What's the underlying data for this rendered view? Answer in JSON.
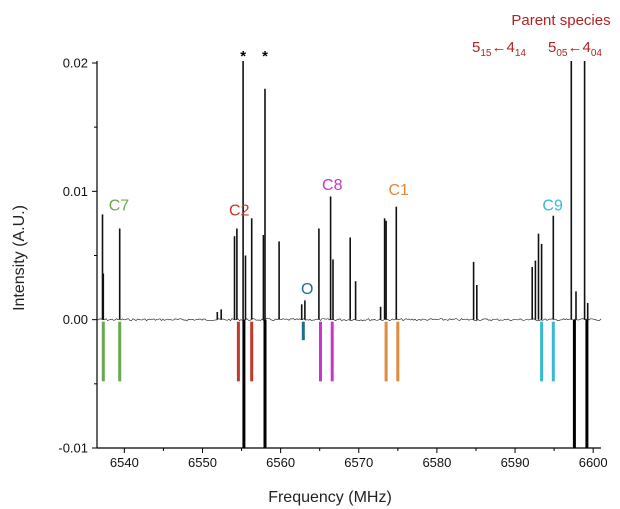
{
  "chart_data": {
    "type": "line",
    "title": "",
    "xlabel": "Frequency (MHz)",
    "ylabel": "Intensity (A.U.)",
    "xlim": [
      6536.5,
      6601
    ],
    "ylim": [
      -0.01,
      0.02
    ],
    "x_ticks": [
      6540,
      6550,
      6560,
      6570,
      6580,
      6590,
      6600
    ],
    "x_tick_labels": [
      "6540",
      "6550",
      "6560",
      "6570",
      "6580",
      "6590",
      "6600"
    ],
    "y_ticks": [
      -0.01,
      0,
      0.01,
      0.02
    ],
    "y_tick_labels": [
      "-0.01",
      "0.00",
      "0.01",
      "0.02"
    ],
    "grid": false,
    "experimental_lines": [
      {
        "x": 6537.2,
        "y": 0.0082
      },
      {
        "x": 6537.3,
        "y": 0.0036
      },
      {
        "x": 6539.4,
        "y": 0.0071
      },
      {
        "x": 6551.9,
        "y": 0.0006
      },
      {
        "x": 6552.4,
        "y": 0.0008
      },
      {
        "x": 6554.1,
        "y": 0.0065
      },
      {
        "x": 6554.4,
        "y": 0.0071
      },
      {
        "x": 6555.2,
        "y": 0.0203
      },
      {
        "x": 6555.5,
        "y": 0.005
      },
      {
        "x": 6556.3,
        "y": 0.0079
      },
      {
        "x": 6557.8,
        "y": 0.0066
      },
      {
        "x": 6558.0,
        "y": 0.018
      },
      {
        "x": 6559.8,
        "y": 0.0061
      },
      {
        "x": 6562.7,
        "y": 0.0012
      },
      {
        "x": 6563.1,
        "y": 0.0015
      },
      {
        "x": 6564.9,
        "y": 0.0071
      },
      {
        "x": 6566.4,
        "y": 0.0096
      },
      {
        "x": 6566.7,
        "y": 0.0047
      },
      {
        "x": 6568.9,
        "y": 0.0064
      },
      {
        "x": 6569.6,
        "y": 0.003
      },
      {
        "x": 6572.8,
        "y": 0.001
      },
      {
        "x": 6573.3,
        "y": 0.0079
      },
      {
        "x": 6573.5,
        "y": 0.0077
      },
      {
        "x": 6574.8,
        "y": 0.0088
      },
      {
        "x": 6584.7,
        "y": 0.0045
      },
      {
        "x": 6585.1,
        "y": 0.0027
      },
      {
        "x": 6592.2,
        "y": 0.0041
      },
      {
        "x": 6592.6,
        "y": 0.0046
      },
      {
        "x": 6593.0,
        "y": 0.0067
      },
      {
        "x": 6593.4,
        "y": 0.0059
      },
      {
        "x": 6594.9,
        "y": 0.0081
      },
      {
        "x": 6597.2,
        "y": 0.0202
      },
      {
        "x": 6597.8,
        "y": 0.0022
      },
      {
        "x": 6598.9,
        "y": 0.0202
      },
      {
        "x": 6599.3,
        "y": 0.0013
      }
    ],
    "negative_lines": [
      {
        "x": 6555.3,
        "y": -0.0102
      },
      {
        "x": 6558.0,
        "y": -0.0102
      },
      {
        "x": 6597.6,
        "y": -0.0102
      },
      {
        "x": 6599.2,
        "y": -0.0102
      }
    ],
    "predicted_lines": [
      {
        "label": "C7",
        "color": "#6aa84f",
        "x": [
          6537.3,
          6539.4
        ],
        "y": -0.0048
      },
      {
        "label": "C2",
        "color": "#c0392b",
        "x": [
          6554.6,
          6556.3
        ],
        "y": -0.0048
      },
      {
        "label": "O",
        "color": "#1f6e8c",
        "x": [
          6562.9
        ],
        "y": -0.0016
      },
      {
        "label": "C8",
        "color": "#cc33cc",
        "x": [
          6565.1,
          6566.6
        ],
        "y": -0.0048
      },
      {
        "label": "C1",
        "color": "#e08a3c",
        "x": [
          6573.5,
          6575.0
        ],
        "y": -0.0048
      },
      {
        "label": "C9",
        "color": "#38b8d8",
        "x": [
          6593.4,
          6594.9
        ],
        "y": -0.0048
      }
    ],
    "assignment_labels": [
      {
        "text": "C7",
        "color": "#6aa84f",
        "x": 6538.0,
        "y": 0.0085
      },
      {
        "text": "C2",
        "color": "#c0392b",
        "x": 6553.4,
        "y": 0.0081
      },
      {
        "text": "O",
        "color": "#1f6e8c",
        "x": 6562.6,
        "y": 0.002
      },
      {
        "text": "C8",
        "color": "#cc33cc",
        "x": 6565.3,
        "y": 0.0101
      },
      {
        "text": "C1",
        "color": "#e08a3c",
        "x": 6573.8,
        "y": 0.0097
      },
      {
        "text": "C9",
        "color": "#38b8d8",
        "x": 6593.5,
        "y": 0.0085
      }
    ],
    "markers": [
      {
        "text": "*",
        "x": 6555.2
      },
      {
        "text": "*",
        "x": 6558.0
      }
    ],
    "annotations": {
      "parent_species": "Parent species",
      "transition_1": {
        "j_up": "5",
        "ka_kc_up": "15",
        "arrow": "←",
        "j_low": "4",
        "ka_kc_low": "14"
      },
      "transition_2": {
        "j_up": "5",
        "ka_kc_up": "05",
        "arrow": "←",
        "j_low": "4",
        "ka_kc_low": "04"
      },
      "color": "#b22222"
    }
  }
}
